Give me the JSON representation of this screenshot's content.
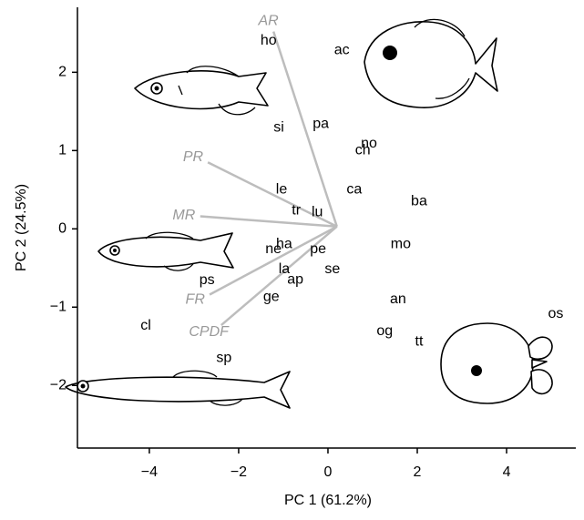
{
  "chart_data": {
    "type": "scatter",
    "x_label": "PC 1 (61.2%)",
    "y_label": "PC 2 (24.5%)",
    "xlim": [
      -5.61,
      5.55
    ],
    "ylim": [
      -2.8,
      2.83
    ],
    "xticks": [
      {
        "value": -4,
        "label": "−4"
      },
      {
        "value": -2,
        "label": "−2"
      },
      0,
      2,
      4
    ],
    "yticks": [
      {
        "value": -2,
        "label": "−2"
      },
      {
        "value": -1,
        "label": "−1"
      },
      0,
      1,
      2
    ],
    "point_color": "#000000",
    "points": {
      "labels": [
        "ho",
        "ac",
        "si",
        "pa",
        "no",
        "ch",
        "le",
        "ca",
        "ba",
        "tr",
        "lu",
        "ne",
        "ha",
        "pe",
        "mo",
        "la",
        "se",
        "ap",
        "ps",
        "ge",
        "an",
        "cl",
        "og",
        "tt",
        "os",
        "sp"
      ],
      "x": [
        -1.33,
        0.31,
        -1.1,
        -0.16,
        0.92,
        0.78,
        -1.04,
        0.59,
        2.04,
        -0.71,
        -0.24,
        -1.22,
        -0.98,
        -0.22,
        1.63,
        -0.98,
        0.1,
        -0.73,
        -2.71,
        -1.27,
        1.57,
        -4.08,
        1.27,
        2.04,
        5.1,
        -2.33
      ],
      "y": [
        2.4,
        2.28,
        1.29,
        1.34,
        1.09,
        1.0,
        0.5,
        0.5,
        0.35,
        0.23,
        0.21,
        -0.26,
        -0.2,
        -0.26,
        -0.2,
        -0.52,
        -0.52,
        -0.65,
        -0.66,
        -0.87,
        -0.9,
        -1.24,
        -1.31,
        -1.44,
        -1.09,
        -1.65
      ]
    },
    "loadings": {
      "color": "#bdbdbd",
      "origin": [
        0.2,
        0.03
      ],
      "names": [
        "AR",
        "PR",
        "MR",
        "FR",
        "CPDF"
      ],
      "x": [
        -1.22,
        -2.69,
        -2.86,
        -2.65,
        -2.39
      ],
      "y": [
        2.52,
        0.85,
        0.16,
        -0.84,
        -1.23
      ]
    }
  }
}
